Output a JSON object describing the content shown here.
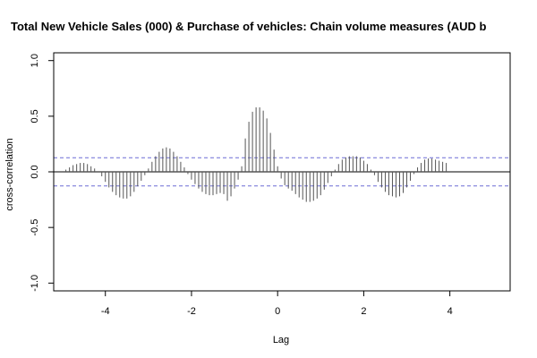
{
  "chart_data": {
    "type": "bar",
    "title": "Total New Vehicle Sales (000) & Purchase of vehicles: Chain volume measures (AUD b",
    "xlabel": "Lag",
    "ylabel": "cross-correlation",
    "xlim": [
      -5.2,
      5.4
    ],
    "ylim": [
      -1.07,
      1.07
    ],
    "x_ticks": [
      -4,
      -2,
      0,
      2,
      4
    ],
    "y_ticks": [
      -1.0,
      -0.5,
      0.0,
      0.5,
      1.0
    ],
    "x_tick_labels": [
      "-4",
      "-2",
      "0",
      "2",
      "4"
    ],
    "y_tick_labels": [
      "-1.0",
      "-0.5",
      "0.0",
      "0.5",
      "1.0"
    ],
    "confidence_limit": 0.127,
    "confidence_color": "#6b6bd6",
    "bar_color": "#555555",
    "lag_start": -4.917,
    "lag_step": 0.0833333,
    "values": [
      0.02,
      0.04,
      0.06,
      0.07,
      0.08,
      0.08,
      0.07,
      0.05,
      0.03,
      0.0,
      -0.04,
      -0.09,
      -0.14,
      -0.18,
      -0.21,
      -0.23,
      -0.24,
      -0.24,
      -0.22,
      -0.18,
      -0.13,
      -0.08,
      -0.03,
      0.03,
      0.09,
      0.14,
      0.18,
      0.21,
      0.22,
      0.21,
      0.18,
      0.14,
      0.09,
      0.04,
      -0.02,
      -0.07,
      -0.11,
      -0.15,
      -0.18,
      -0.2,
      -0.21,
      -0.21,
      -0.2,
      -0.19,
      -0.2,
      -0.26,
      -0.22,
      -0.15,
      -0.07,
      0.05,
      0.3,
      0.45,
      0.54,
      0.58,
      0.58,
      0.55,
      0.48,
      0.35,
      0.2,
      0.05,
      -0.06,
      -0.12,
      -0.15,
      -0.17,
      -0.2,
      -0.23,
      -0.25,
      -0.27,
      -0.27,
      -0.26,
      -0.24,
      -0.21,
      -0.16,
      -0.1,
      -0.04,
      0.02,
      0.07,
      0.11,
      0.13,
      0.14,
      0.14,
      0.14,
      0.13,
      0.1,
      0.07,
      0.02,
      -0.03,
      -0.09,
      -0.14,
      -0.18,
      -0.21,
      -0.22,
      -0.23,
      -0.22,
      -0.19,
      -0.14,
      -0.08,
      -0.02,
      0.04,
      0.08,
      0.11,
      0.12,
      0.12,
      0.11,
      0.1,
      0.09,
      0.08
    ]
  }
}
